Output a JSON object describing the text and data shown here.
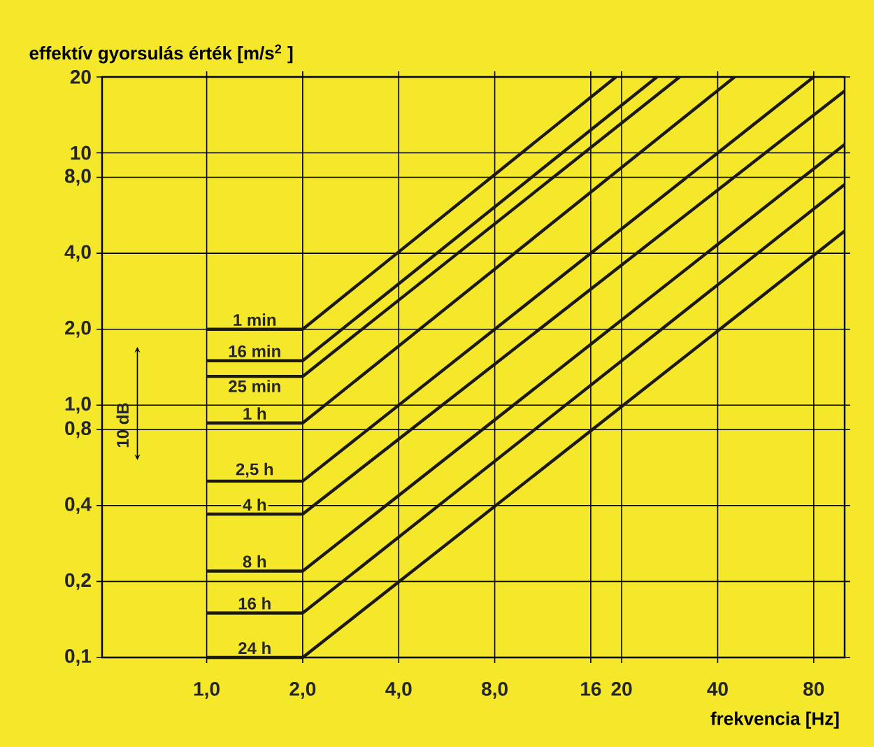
{
  "chart_data": {
    "type": "line",
    "xlabel": "frekvencia [Hz]",
    "ylabel": "effektív gyorsulás érték [m/s$^{2}$ ]",
    "log": "xy",
    "grid": true,
    "marker": "none",
    "line_style": "solid",
    "xlim": [
      0.47,
      100
    ],
    "ylim": [
      0.1,
      20
    ],
    "xticks": [
      {
        "value": 1,
        "label": "1,0"
      },
      {
        "value": 2,
        "label": "2,0"
      },
      {
        "value": 4,
        "label": "4,0"
      },
      {
        "value": 8,
        "label": "8,0"
      },
      16,
      20,
      40,
      80
    ],
    "yticks": [
      {
        "value": 0.1,
        "label": "0,1"
      },
      {
        "value": 0.2,
        "label": "0,2"
      },
      {
        "value": 0.4,
        "label": "0,4"
      },
      {
        "value": 0.8,
        "label": "0,8"
      },
      {
        "value": 1,
        "label": "1,0"
      },
      {
        "value": 2,
        "label": "2,0"
      },
      {
        "value": 4,
        "label": "4,0"
      },
      {
        "value": 8,
        "label": "8,0"
      },
      10,
      20
    ],
    "annotations": [
      "10 dB"
    ],
    "series": [
      {
        "name": "1 min",
        "color": "#1c1a10",
        "x": [
          1,
          2,
          19.2
        ],
        "values": [
          2.0,
          2.0,
          20
        ]
      },
      {
        "name": "16 min",
        "color": "#1c1a10",
        "x": [
          1,
          2,
          25.8
        ],
        "values": [
          1.5,
          1.5,
          20
        ]
      },
      {
        "name": "25 min",
        "color": "#1c1a10",
        "x": [
          1,
          2,
          30.4
        ],
        "values": [
          1.3,
          1.3,
          20
        ]
      },
      {
        "name": "1 h",
        "color": "#1c1a10",
        "x": [
          1,
          2,
          45.2
        ],
        "values": [
          0.85,
          0.85,
          20
        ]
      },
      {
        "name": "2,5 h",
        "color": "#1c1a10",
        "x": [
          1,
          2,
          80
        ],
        "values": [
          0.5,
          0.5,
          20
        ]
      },
      {
        "name": "4 h",
        "color": "#1c1a10",
        "x": [
          1,
          2,
          100
        ],
        "values": [
          0.37,
          0.37,
          17.6
        ]
      },
      {
        "name": "8 h",
        "color": "#1c1a10",
        "x": [
          1,
          2,
          100
        ],
        "values": [
          0.22,
          0.22,
          10.8
        ]
      },
      {
        "name": "16 h",
        "color": "#1c1a10",
        "x": [
          1,
          2,
          100
        ],
        "values": [
          0.15,
          0.15,
          7.5
        ]
      },
      {
        "name": "24 h",
        "color": "#1c1a10",
        "x": [
          1,
          2,
          100
        ],
        "values": [
          0.1,
          0.1,
          4.9
        ]
      }
    ]
  }
}
